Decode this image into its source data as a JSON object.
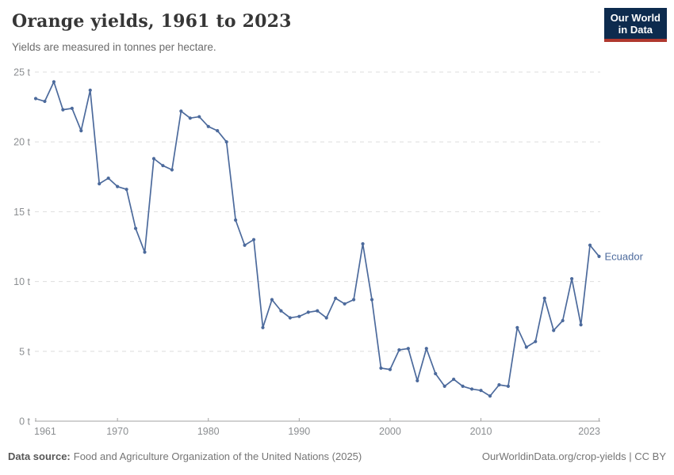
{
  "header": {
    "title": "Orange yields, 1961 to 2023",
    "subtitle": "Yields are measured in tonnes per hectare.",
    "logo": {
      "line1": "Our World",
      "line2": "in Data"
    }
  },
  "brand_colors": {
    "logo_background": "#0d2b4e",
    "logo_underline": "#b0382e",
    "series_blue": "#4C6A9C"
  },
  "chart_data": {
    "type": "line",
    "title": "Orange yields, 1961 to 2023",
    "subtitle": "Yields are measured in tonnes per hectare.",
    "xlabel": "",
    "ylabel": "tonnes per hectare",
    "xlim": [
      1961,
      2023
    ],
    "ylim": [
      0,
      25
    ],
    "xticks": [
      1961,
      1970,
      1980,
      1990,
      2000,
      2010,
      2023
    ],
    "yticks": [
      0,
      5,
      10,
      15,
      20,
      25
    ],
    "ytick_suffix": " t",
    "grid": "horizontal-dashed",
    "legend_position": "end-of-line-label",
    "series": [
      {
        "name": "Ecuador",
        "color": "#4C6A9C",
        "x": [
          1961,
          1962,
          1963,
          1964,
          1965,
          1966,
          1967,
          1968,
          1969,
          1970,
          1971,
          1972,
          1973,
          1974,
          1975,
          1976,
          1977,
          1978,
          1979,
          1980,
          1981,
          1982,
          1983,
          1984,
          1985,
          1986,
          1987,
          1988,
          1989,
          1990,
          1991,
          1992,
          1993,
          1994,
          1995,
          1996,
          1997,
          1998,
          1999,
          2000,
          2001,
          2002,
          2003,
          2004,
          2005,
          2006,
          2007,
          2008,
          2009,
          2010,
          2011,
          2012,
          2013,
          2014,
          2015,
          2016,
          2017,
          2018,
          2019,
          2020,
          2021,
          2022,
          2023
        ],
        "values": [
          23.1,
          22.9,
          24.3,
          22.3,
          22.4,
          20.8,
          23.7,
          17.0,
          17.4,
          16.8,
          16.6,
          13.8,
          12.1,
          18.8,
          18.3,
          18.0,
          22.2,
          21.7,
          21.8,
          21.1,
          20.8,
          20.0,
          14.4,
          12.6,
          13.0,
          6.7,
          8.7,
          7.9,
          7.4,
          7.5,
          7.8,
          7.9,
          7.4,
          8.8,
          8.4,
          8.7,
          12.7,
          8.7,
          3.8,
          3.7,
          5.1,
          5.2,
          2.9,
          5.2,
          3.4,
          2.5,
          3.0,
          2.5,
          2.3,
          2.2,
          1.8,
          2.6,
          2.5,
          6.7,
          5.3,
          5.7,
          8.8,
          6.5,
          7.2,
          10.2,
          6.9,
          12.6,
          11.8
        ]
      }
    ]
  },
  "footer": {
    "source_label": "Data source:",
    "source_text": "Food and Agriculture Organization of the United Nations (2025)",
    "credit": "OurWorldinData.org/crop-yields | CC BY"
  }
}
